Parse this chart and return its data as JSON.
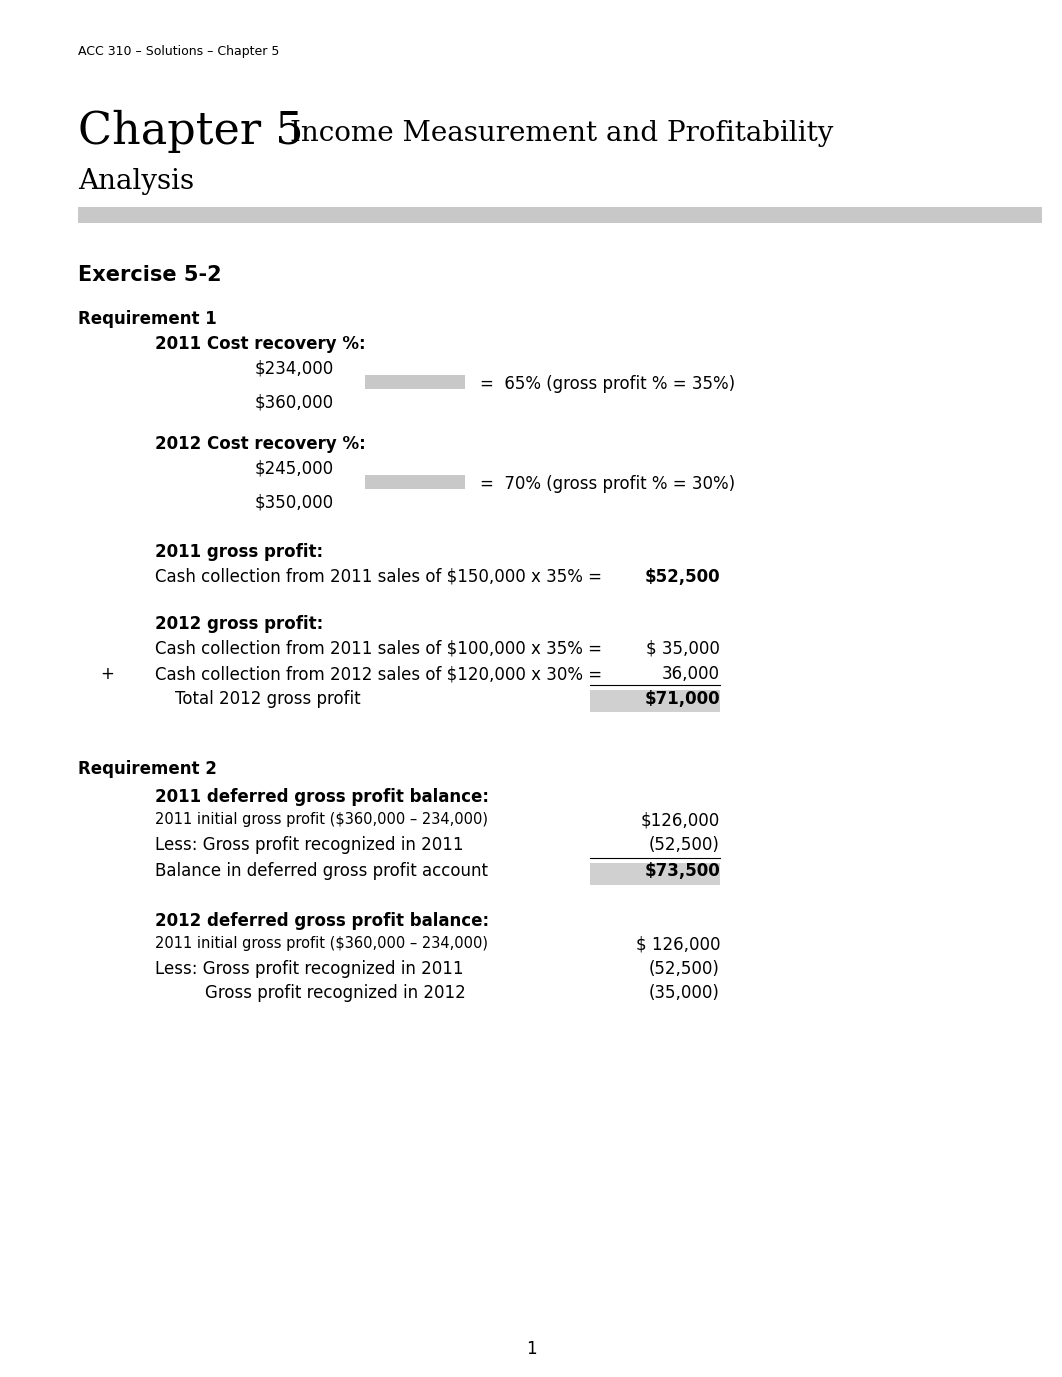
{
  "header": "ACC 310 – Solutions – Chapter 5",
  "chapter_number": "Chapter 5",
  "exercise": "Exercise 5-2",
  "req1_label": "Requirement 1",
  "cost_recovery_2011_label": "2011 Cost recovery %:",
  "cost_recovery_2011_num": "$234,000",
  "cost_recovery_2011_eq": "=  65% (gross profit % = 35%)",
  "cost_recovery_2011_den": "$360,000",
  "cost_recovery_2012_label": "2012 Cost recovery %:",
  "cost_recovery_2012_num": "$245,000",
  "cost_recovery_2012_eq": "=  70% (gross profit % = 30%)",
  "cost_recovery_2012_den": "$350,000",
  "gross_profit_2011_label": "2011 gross profit:",
  "gross_profit_2011_line": "Cash collection from 2011 sales of $150,000 x 35% =",
  "gross_profit_2011_val": "$52,500",
  "gross_profit_2012_label": "2012 gross profit:",
  "gross_profit_2012_line1": "Cash collection from 2011 sales of $100,000 x 35% =",
  "gross_profit_2012_val1": "$ 35,000",
  "gross_profit_2012_plus": "+",
  "gross_profit_2012_line2": "Cash collection from 2012 sales of $120,000 x 30% =",
  "gross_profit_2012_val2": "36,000",
  "gross_profit_2012_total_label": "Total 2012 gross profit",
  "gross_profit_2012_total_val": "$71,000",
  "req2_label": "Requirement 2",
  "deferred_2011_label": "2011 deferred gross profit balance:",
  "deferred_2011_line1": "2011 initial gross profit ($360,000 – 234,000)",
  "deferred_2011_val1": "$126,000",
  "deferred_2011_line2": "Less: Gross profit recognized in 2011",
  "deferred_2011_val2": "(52,500)",
  "deferred_2011_line3": "Balance in deferred gross profit account",
  "deferred_2011_val3": "$73,500",
  "deferred_2012_label": "2012 deferred gross profit balance:",
  "deferred_2012_line1": "2011 initial gross profit ($360,000 – 234,000)",
  "deferred_2012_val1": "$ 126,000",
  "deferred_2012_line2": "Less: Gross profit recognized in 2011",
  "deferred_2012_val2": "(52,500)",
  "deferred_2012_line3": "Gross profit recognized in 2012",
  "deferred_2012_val3": "(35,000)",
  "page_number": "1",
  "bg_color": "#ffffff",
  "text_color": "#000000",
  "rule_color": "#c8c8c8",
  "fraction_bar_color": "#c8c8c8",
  "highlight_color": "#d0d0d0"
}
